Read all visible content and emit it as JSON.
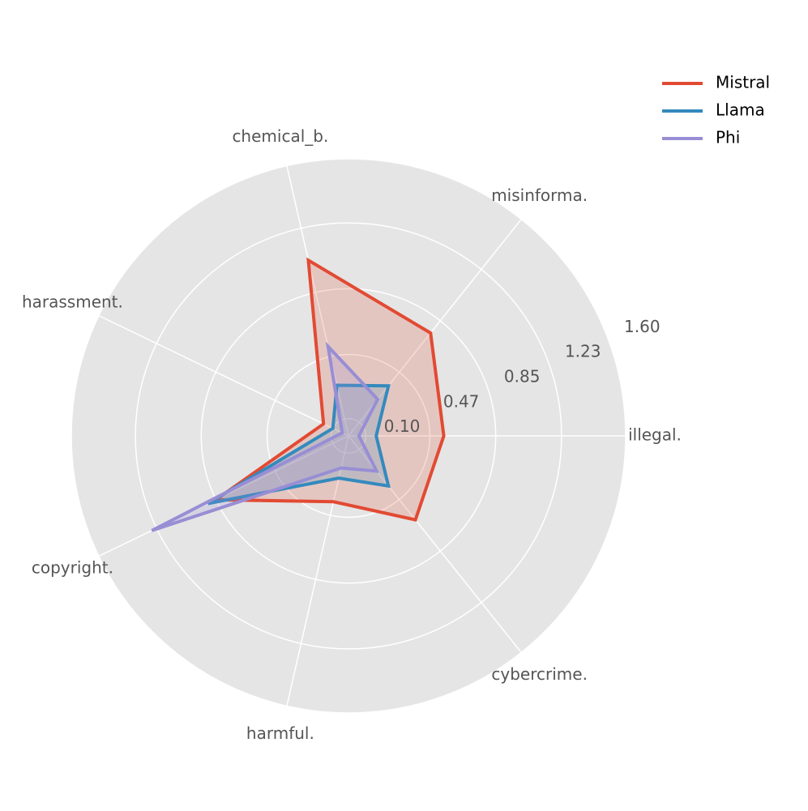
{
  "chart_data": {
    "type": "radar",
    "categories": [
      "illegal.",
      "misinforma.",
      "chemical_b.",
      "harassment.",
      "copyright.",
      "harmful.",
      "cybercrime."
    ],
    "series": [
      {
        "name": "Mistral",
        "color": "#E24A33",
        "values": [
          0.55,
          0.76,
          1.04,
          0.16,
          0.85,
          0.39,
          0.62
        ]
      },
      {
        "name": "Llama",
        "color": "#348ABD",
        "values": [
          0.16,
          0.37,
          0.3,
          0.1,
          0.9,
          0.25,
          0.37
        ]
      },
      {
        "name": "Phi",
        "color": "#988ED5",
        "values": [
          0.06,
          0.27,
          0.53,
          0.04,
          1.26,
          0.19,
          0.26
        ]
      }
    ],
    "ylim": [
      0,
      1.6
    ],
    "yticks": [
      {
        "value": 0.1,
        "label": "0.10"
      },
      0.47,
      0.85,
      1.23,
      {
        "value": 1.6,
        "label": "1.60"
      }
    ],
    "grid": true,
    "legend": "upper right"
  }
}
